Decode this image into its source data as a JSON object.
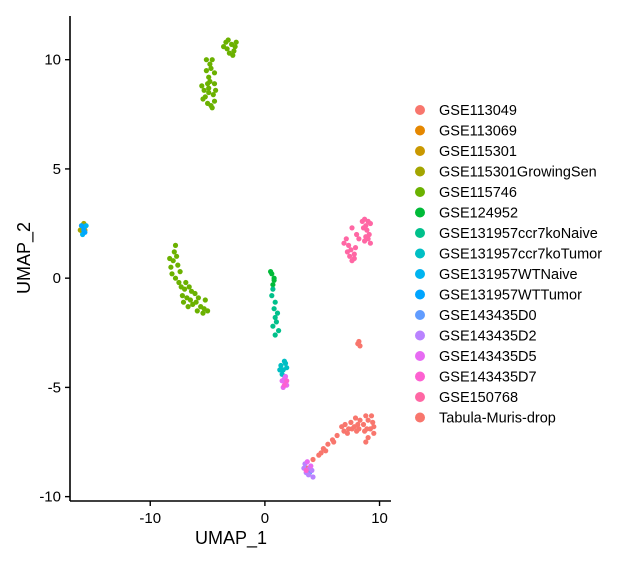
{
  "chart_data": {
    "type": "scatter",
    "title": "",
    "xlabel": "UMAP_1",
    "ylabel": "UMAP_2",
    "xlim": [
      -17,
      11
    ],
    "ylim": [
      -10.2,
      12
    ],
    "xticks": [
      -10,
      0,
      10
    ],
    "xtick_labels": [
      "-10",
      "0",
      "10"
    ],
    "yticks": [
      -10,
      -5,
      0,
      5,
      10
    ],
    "ytick_labels": [
      "-10",
      "-5",
      "0",
      "5",
      "10"
    ],
    "grid": false,
    "legend_position": "right",
    "series": [
      {
        "name": "GSE113049",
        "color": "#F8766D",
        "points": [
          [
            3.7,
            -8.7
          ],
          [
            4.2,
            -8.3
          ],
          [
            4.7,
            -8.1
          ],
          [
            5.1,
            -7.8
          ],
          [
            5.5,
            -7.6
          ],
          [
            5.9,
            -7.4
          ],
          [
            6.3,
            -7.2
          ],
          [
            5.3,
            -7.9
          ],
          [
            4.9,
            -8.0
          ],
          [
            6.0,
            -7.5
          ]
        ]
      },
      {
        "name": "GSE113069",
        "color": "#E58700",
        "points": [
          [
            -15.8,
            2.3
          ],
          [
            -16.0,
            2.4
          ]
        ]
      },
      {
        "name": "GSE115301",
        "color": "#C99800",
        "points": [
          [
            -15.9,
            2.1
          ],
          [
            -15.7,
            2.2
          ]
        ]
      },
      {
        "name": "GSE115301GrowingSen",
        "color": "#A3A500",
        "points": [
          [
            -15.8,
            2.5
          ],
          [
            -16.1,
            2.2
          ]
        ]
      },
      {
        "name": "GSE115746",
        "color": "#6BB100",
        "points": [
          [
            -3.2,
            10.9
          ],
          [
            -3.4,
            10.8
          ],
          [
            -2.9,
            10.7
          ],
          [
            -2.6,
            10.6
          ],
          [
            -2.7,
            10.4
          ],
          [
            -2.8,
            10.2
          ],
          [
            -3.3,
            10.5
          ],
          [
            -3.1,
            10.3
          ],
          [
            -2.5,
            10.8
          ],
          [
            -3.6,
            10.6
          ],
          [
            -4.6,
            10.0
          ],
          [
            -4.8,
            9.8
          ],
          [
            -5.1,
            9.5
          ],
          [
            -4.9,
            9.2
          ],
          [
            -5.0,
            8.9
          ],
          [
            -5.3,
            8.6
          ],
          [
            -5.4,
            8.2
          ],
          [
            -5.0,
            8.0
          ],
          [
            -4.7,
            7.9
          ],
          [
            -4.4,
            8.1
          ],
          [
            -4.5,
            8.4
          ],
          [
            -4.9,
            8.7
          ],
          [
            -5.2,
            8.3
          ],
          [
            -4.7,
            9.6
          ],
          [
            -4.4,
            9.4
          ],
          [
            -5.5,
            8.8
          ],
          [
            -4.6,
            7.8
          ],
          [
            -4.3,
            8.6
          ],
          [
            -5.1,
            10.0
          ],
          [
            -4.8,
            9.0
          ],
          [
            -4.4,
            8.9
          ],
          [
            -4.9,
            8.5
          ],
          [
            -7.8,
            1.5
          ],
          [
            -7.9,
            1.2
          ],
          [
            -7.7,
            1.0
          ],
          [
            -8.0,
            0.8
          ],
          [
            -8.2,
            0.5
          ],
          [
            -8.1,
            0.2
          ],
          [
            -7.8,
            0.0
          ],
          [
            -7.5,
            -0.2
          ],
          [
            -7.3,
            -0.4
          ],
          [
            -7.0,
            -0.5
          ],
          [
            -7.2,
            -0.8
          ],
          [
            -6.8,
            -0.9
          ],
          [
            -6.5,
            -1.0
          ],
          [
            -6.3,
            -1.2
          ],
          [
            -6.0,
            -1.1
          ],
          [
            -5.6,
            -1.3
          ],
          [
            -5.3,
            -1.4
          ],
          [
            -5.0,
            -1.5
          ],
          [
            -5.4,
            -1.6
          ],
          [
            -5.8,
            -0.9
          ],
          [
            -6.1,
            -0.7
          ],
          [
            -6.6,
            -0.4
          ],
          [
            -6.9,
            -0.2
          ],
          [
            -7.4,
            0.3
          ],
          [
            -7.6,
            0.6
          ],
          [
            -8.3,
            0.9
          ],
          [
            -7.1,
            -1.1
          ],
          [
            -5.9,
            -1.5
          ],
          [
            -6.4,
            -0.6
          ],
          [
            -5.2,
            -1.0
          ],
          [
            -6.7,
            -1.3
          ]
        ]
      },
      {
        "name": "GSE124952",
        "color": "#00BA38",
        "points": [
          [
            0.6,
            0.2
          ],
          [
            0.8,
            0.0
          ],
          [
            0.7,
            -0.3
          ],
          [
            0.5,
            0.3
          ],
          [
            0.8,
            -0.1
          ]
        ]
      },
      {
        "name": "GSE131957ccr7koNaive",
        "color": "#00C08B",
        "points": [
          [
            0.7,
            -0.5
          ],
          [
            0.6,
            -0.8
          ],
          [
            0.9,
            -1.1
          ],
          [
            0.8,
            -1.4
          ],
          [
            0.9,
            -1.8
          ],
          [
            1.0,
            -2.0
          ],
          [
            0.7,
            -2.2
          ],
          [
            1.2,
            -2.4
          ],
          [
            0.9,
            -2.6
          ],
          [
            1.1,
            -1.6
          ]
        ]
      },
      {
        "name": "GSE131957ccr7koTumor",
        "color": "#00BFC4",
        "points": [
          [
            1.4,
            -4.0
          ],
          [
            1.6,
            -4.2
          ],
          [
            1.8,
            -3.9
          ],
          [
            1.5,
            -4.4
          ],
          [
            1.9,
            -4.1
          ],
          [
            1.3,
            -4.2
          ],
          [
            1.7,
            -3.8
          ]
        ]
      },
      {
        "name": "GSE131957WTNaive",
        "color": "#00B4F0",
        "points": [
          [
            -15.8,
            2.3
          ],
          [
            -15.9,
            2.0
          ],
          [
            -15.6,
            2.4
          ]
        ]
      },
      {
        "name": "GSE131957WTTumor",
        "color": "#00A5FF",
        "points": [
          [
            -15.7,
            2.1
          ],
          [
            -16.0,
            2.4
          ],
          [
            -15.8,
            2.2
          ]
        ]
      },
      {
        "name": "GSE143435D0",
        "color": "#619CFF",
        "points": [
          [
            3.7,
            -8.8
          ],
          [
            3.9,
            -8.9
          ]
        ]
      },
      {
        "name": "GSE143435D2",
        "color": "#B983FF",
        "points": [
          [
            3.5,
            -8.5
          ],
          [
            3.9,
            -8.7
          ],
          [
            4.1,
            -8.8
          ],
          [
            3.6,
            -8.9
          ],
          [
            4.2,
            -9.1
          ],
          [
            3.4,
            -8.7
          ],
          [
            3.8,
            -9.0
          ]
        ]
      },
      {
        "name": "GSE143435D5",
        "color": "#E76BF3",
        "points": [
          [
            1.7,
            -4.6
          ],
          [
            1.8,
            -4.8
          ],
          [
            1.6,
            -5.0
          ],
          [
            1.9,
            -4.9
          ],
          [
            1.8,
            -4.5
          ],
          [
            1.5,
            -4.7
          ],
          [
            3.7,
            -8.4
          ],
          [
            4.0,
            -8.6
          ]
        ]
      },
      {
        "name": "GSE143435D7",
        "color": "#FD61D1",
        "points": [
          [
            1.9,
            -4.7
          ],
          [
            1.7,
            -4.9
          ],
          [
            3.6,
            -8.8
          ]
        ]
      },
      {
        "name": "GSE150768",
        "color": "#FF67A4",
        "points": [
          [
            8.5,
            2.6
          ],
          [
            8.7,
            2.7
          ],
          [
            9.0,
            2.6
          ],
          [
            8.8,
            2.4
          ],
          [
            9.2,
            2.5
          ],
          [
            8.6,
            2.3
          ],
          [
            8.9,
            2.2
          ],
          [
            9.1,
            2.0
          ],
          [
            9.0,
            1.8
          ],
          [
            8.7,
            1.7
          ],
          [
            9.2,
            1.6
          ],
          [
            8.8,
            1.9
          ],
          [
            7.6,
            2.3
          ],
          [
            7.1,
            1.8
          ],
          [
            6.9,
            1.6
          ],
          [
            7.3,
            1.5
          ],
          [
            7.5,
            1.3
          ],
          [
            7.8,
            1.1
          ],
          [
            7.4,
            1.0
          ],
          [
            7.6,
            0.8
          ],
          [
            7.2,
            1.2
          ],
          [
            8.0,
            2.0
          ],
          [
            8.2,
            1.8
          ],
          [
            7.8,
            0.9
          ],
          [
            7.9,
            1.4
          ]
        ]
      },
      {
        "name": "Tabula-Muris-drop",
        "color": "#F8766D",
        "points": [
          [
            6.7,
            -6.8
          ],
          [
            7.0,
            -6.7
          ],
          [
            7.3,
            -6.9
          ],
          [
            7.5,
            -6.6
          ],
          [
            7.8,
            -6.8
          ],
          [
            8.0,
            -7.0
          ],
          [
            8.3,
            -6.5
          ],
          [
            8.6,
            -6.7
          ],
          [
            8.8,
            -6.3
          ],
          [
            9.0,
            -6.5
          ],
          [
            9.2,
            -6.9
          ],
          [
            9.4,
            -6.6
          ],
          [
            9.5,
            -7.1
          ],
          [
            9.0,
            -7.3
          ],
          [
            8.7,
            -7.0
          ],
          [
            8.1,
            -6.7
          ],
          [
            7.6,
            -6.9
          ],
          [
            7.2,
            -7.1
          ],
          [
            6.9,
            -7.0
          ],
          [
            9.3,
            -6.3
          ],
          [
            9.5,
            -6.8
          ],
          [
            8.9,
            -6.9
          ],
          [
            7.9,
            -6.4
          ],
          [
            8.2,
            -6.9
          ],
          [
            8.8,
            -7.5
          ],
          [
            8.2,
            -2.9
          ],
          [
            8.3,
            -3.1
          ],
          [
            8.1,
            -3.0
          ]
        ]
      }
    ]
  }
}
